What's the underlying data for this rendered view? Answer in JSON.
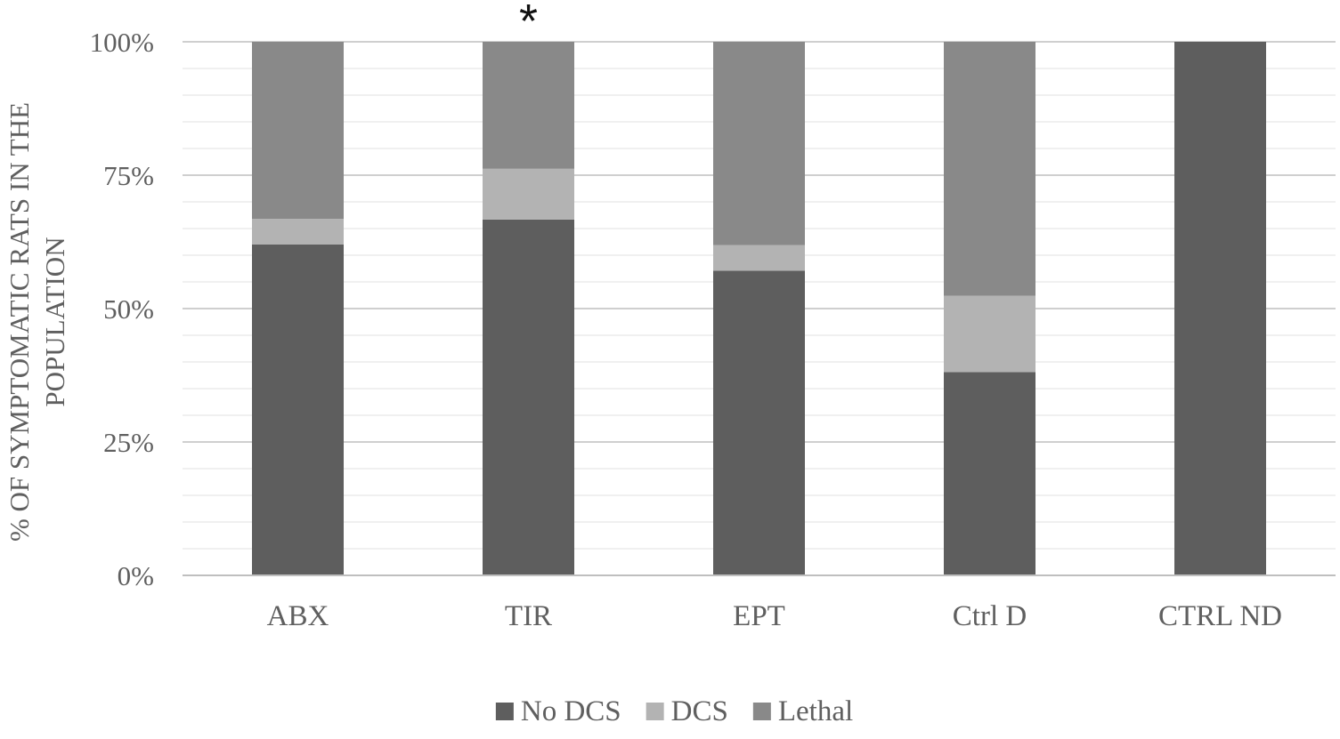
{
  "chart_data": {
    "type": "bar",
    "stacked": true,
    "title": "",
    "xlabel": "",
    "ylabel_lines": [
      "% OF SYMPTOMATIC RATS IN THE",
      "POPULATION"
    ],
    "ylim": [
      0,
      100
    ],
    "yticks": [
      0,
      25,
      50,
      75,
      100
    ],
    "ytick_labels": [
      "0%",
      "25%",
      "50%",
      "75%",
      "100%"
    ],
    "minor_gridline_step": 5,
    "grid": true,
    "categories": [
      "ABX",
      "TIR",
      "EPT",
      "Ctrl D",
      "CTRL ND"
    ],
    "series": [
      {
        "name": "No DCS",
        "color": "#5e5e5e",
        "values": [
          62,
          66.7,
          57.1,
          38.1,
          100
        ]
      },
      {
        "name": "DCS",
        "color": "#b3b3b3",
        "values": [
          4.8,
          9.5,
          4.8,
          14.3,
          0
        ]
      },
      {
        "name": "Lethal",
        "color": "#898989",
        "values": [
          33.2,
          23.8,
          38.1,
          47.6,
          0
        ]
      }
    ],
    "annotations": [
      {
        "category": "TIR",
        "text": "*"
      }
    ],
    "legend_position": "bottom"
  }
}
